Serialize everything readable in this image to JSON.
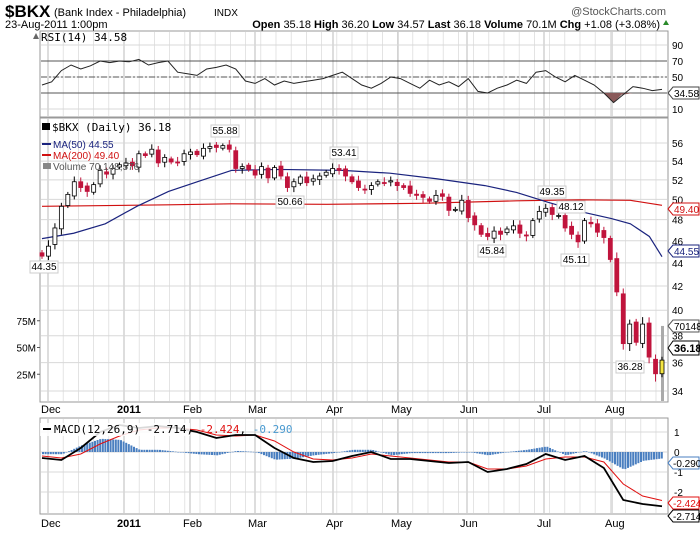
{
  "header": {
    "symbol": "$BKX",
    "name": "(Bank Index - Philadelphia)",
    "exchange": "INDX",
    "watermark": "@StockCharts.com",
    "date": "23-Aug-2011 1:00pm",
    "open_label": "Open",
    "open": "35.18",
    "high_label": "High",
    "high": "36.20",
    "low_label": "Low",
    "low": "34.57",
    "last_label": "Last",
    "last": "36.18",
    "volume_label": "Volume",
    "volume": "70.1M",
    "chg_label": "Chg",
    "chg": "+1.08 (+3.08%)"
  },
  "rsi_panel": {
    "legend": "RSI(14) 34.58",
    "tag": "34.58",
    "ticks": [
      "90",
      "70",
      "50",
      "30",
      "10"
    ]
  },
  "price_panel": {
    "legend_price": "$BKX (Daily) 36.18",
    "legend_ma50": "MA(50) 44.55",
    "legend_ma200": "MA(200) 49.40",
    "legend_volume": "Volume 70,148,576",
    "tag_ma200": "49.40",
    "tag_ma50": "44.55",
    "tag_volume": "70148",
    "tag_last": "36.18",
    "ticks": [
      "56",
      "54",
      "52",
      "50",
      "48",
      "46",
      "44",
      "42",
      "40",
      "38",
      "36",
      "34"
    ],
    "volume_ticks": [
      "75M",
      "50M",
      "25M"
    ],
    "annotations": [
      "55.88",
      "53.41",
      "50.66",
      "44.35",
      "45.84",
      "49.35",
      "48.12",
      "45.11",
      "36.28"
    ]
  },
  "macd_panel": {
    "legend_name": "MACD(12,26,9)",
    "legend_macd": "-2.714",
    "legend_signal": "-2.424",
    "legend_hist": "-0.290",
    "tag_hist": "-0.290",
    "tag_signal": "-2.424",
    "tag_macd": "-2.714",
    "ticks": [
      "1",
      "0",
      "-1",
      "-2"
    ]
  },
  "x_axis": {
    "months": [
      "Dec",
      "2011",
      "Feb",
      "Mar",
      "Apr",
      "May",
      "Jun",
      "Jul",
      "Aug"
    ]
  },
  "colors": {
    "up": "#000000",
    "down": "#c0143c",
    "ma50": "#1a237e",
    "ma200": "#d01010",
    "hist": "#4a7fc0",
    "signal": "#e01010",
    "grid": "#d8d8d8",
    "last_candle": "#f5e642"
  },
  "chart_data": [
    {
      "type": "line",
      "title": "RSI(14)",
      "ylim": [
        0,
        100
      ],
      "reference_lines": [
        70,
        50,
        30
      ],
      "values": [
        40,
        44,
        58,
        65,
        60,
        64,
        70,
        68,
        70,
        69,
        72,
        65,
        68,
        70,
        56,
        54,
        52,
        60,
        62,
        65,
        60,
        45,
        42,
        48,
        40,
        45,
        42,
        44,
        46,
        48,
        52,
        56,
        48,
        40,
        36,
        42,
        50,
        48,
        42,
        36,
        46,
        40,
        44,
        38,
        48,
        32,
        30,
        36,
        40,
        46,
        42,
        56,
        58,
        50,
        44,
        52,
        46,
        40,
        30,
        18,
        28,
        38,
        36,
        33,
        34.58
      ]
    },
    {
      "type": "candlestick",
      "title": "$BKX (Daily)",
      "period": "Dec 2010 - 23 Aug 2011",
      "ylim": [
        34,
        57
      ],
      "scale": "log",
      "closes": [
        44.6,
        45.5,
        47.2,
        49.3,
        50.5,
        51.8,
        51.2,
        50.8,
        51.5,
        53,
        52.6,
        53.2,
        53.6,
        53.8,
        53.5,
        54.8,
        54.6,
        55.3,
        53.8,
        54.4,
        53.9,
        53.8,
        54.8,
        55,
        54.7,
        55.4,
        55.6,
        55.5,
        55.7,
        55.3,
        53.2,
        53.4,
        53.1,
        52.5,
        53.4,
        52.2,
        53.3,
        52.4,
        51.2,
        51.8,
        52.3,
        51.7,
        52.1,
        52.4,
        52.8,
        53.2,
        53,
        52.4,
        51.8,
        51.2,
        51,
        51.4,
        51.8,
        51.7,
        51.9,
        51.4,
        51.2,
        50.6,
        50.4,
        50.2,
        49.8,
        50.4,
        50.3,
        48.9,
        49,
        49.9,
        48.2,
        47.5,
        46.6,
        46.4,
        46.9,
        46.6,
        47.1,
        47.4,
        46.7,
        46.5,
        47.9,
        48.8,
        49.1,
        48.5,
        48.4,
        47.2,
        46.6,
        45.9,
        47.9,
        47.6,
        46.8,
        46.3,
        44.3,
        41.5,
        37.4,
        38.9,
        37.5,
        38.9,
        36.4,
        35.2,
        36.18
      ],
      "first_open": 44.9,
      "ma50": [
        [
          0,
          46.2
        ],
        [
          10,
          46.7
        ],
        [
          20,
          47.6
        ],
        [
          30,
          49.3
        ],
        [
          40,
          50.8
        ],
        [
          50,
          51.9
        ],
        [
          60,
          53.0
        ],
        [
          75,
          53.1
        ],
        [
          95,
          53.0
        ],
        [
          110,
          52.7
        ],
        [
          125,
          52.1
        ],
        [
          140,
          51.4
        ],
        [
          150,
          50.7
        ],
        [
          160,
          49.7
        ],
        [
          170,
          48.8
        ],
        [
          180,
          48.1
        ],
        [
          186,
          47.6
        ],
        [
          192,
          46.4
        ],
        [
          196,
          44.55
        ]
      ],
      "ma200": [
        [
          0,
          49.3
        ],
        [
          40,
          49.45
        ],
        [
          60,
          49.55
        ],
        [
          90,
          49.5
        ],
        [
          120,
          49.6
        ],
        [
          150,
          49.85
        ],
        [
          170,
          49.95
        ],
        [
          186,
          49.9
        ],
        [
          196,
          49.4
        ]
      ],
      "last_volume_millions": 70.15,
      "volume_ylim_millions": [
        0,
        100
      ]
    },
    {
      "type": "line",
      "title": "MACD(12,26,9)",
      "ylim": [
        -3,
        1.8
      ],
      "macd": [
        -0.3,
        -0.4,
        0.2,
        1.0,
        1.35,
        1.2,
        1.3,
        1.2,
        1.0,
        0.7,
        0.85,
        0.85,
        0.2,
        -0.3,
        -0.5,
        -0.45,
        -0.2,
        0.0,
        -0.35,
        -0.35,
        -0.45,
        -0.55,
        -0.5,
        -1.0,
        -0.85,
        -0.6,
        -0.1,
        -0.4,
        -0.2,
        -0.8,
        -2.4,
        -2.6,
        -2.714
      ],
      "signal": [
        -0.2,
        -0.3,
        -0.1,
        0.4,
        0.8,
        1.1,
        1.2,
        1.2,
        1.1,
        0.85,
        0.8,
        0.85,
        0.55,
        0.0,
        -0.35,
        -0.4,
        -0.3,
        -0.1,
        -0.2,
        -0.3,
        -0.4,
        -0.5,
        -0.5,
        -0.85,
        -0.85,
        -0.7,
        -0.35,
        -0.25,
        -0.25,
        -0.5,
        -1.6,
        -2.2,
        -2.424
      ]
    }
  ]
}
